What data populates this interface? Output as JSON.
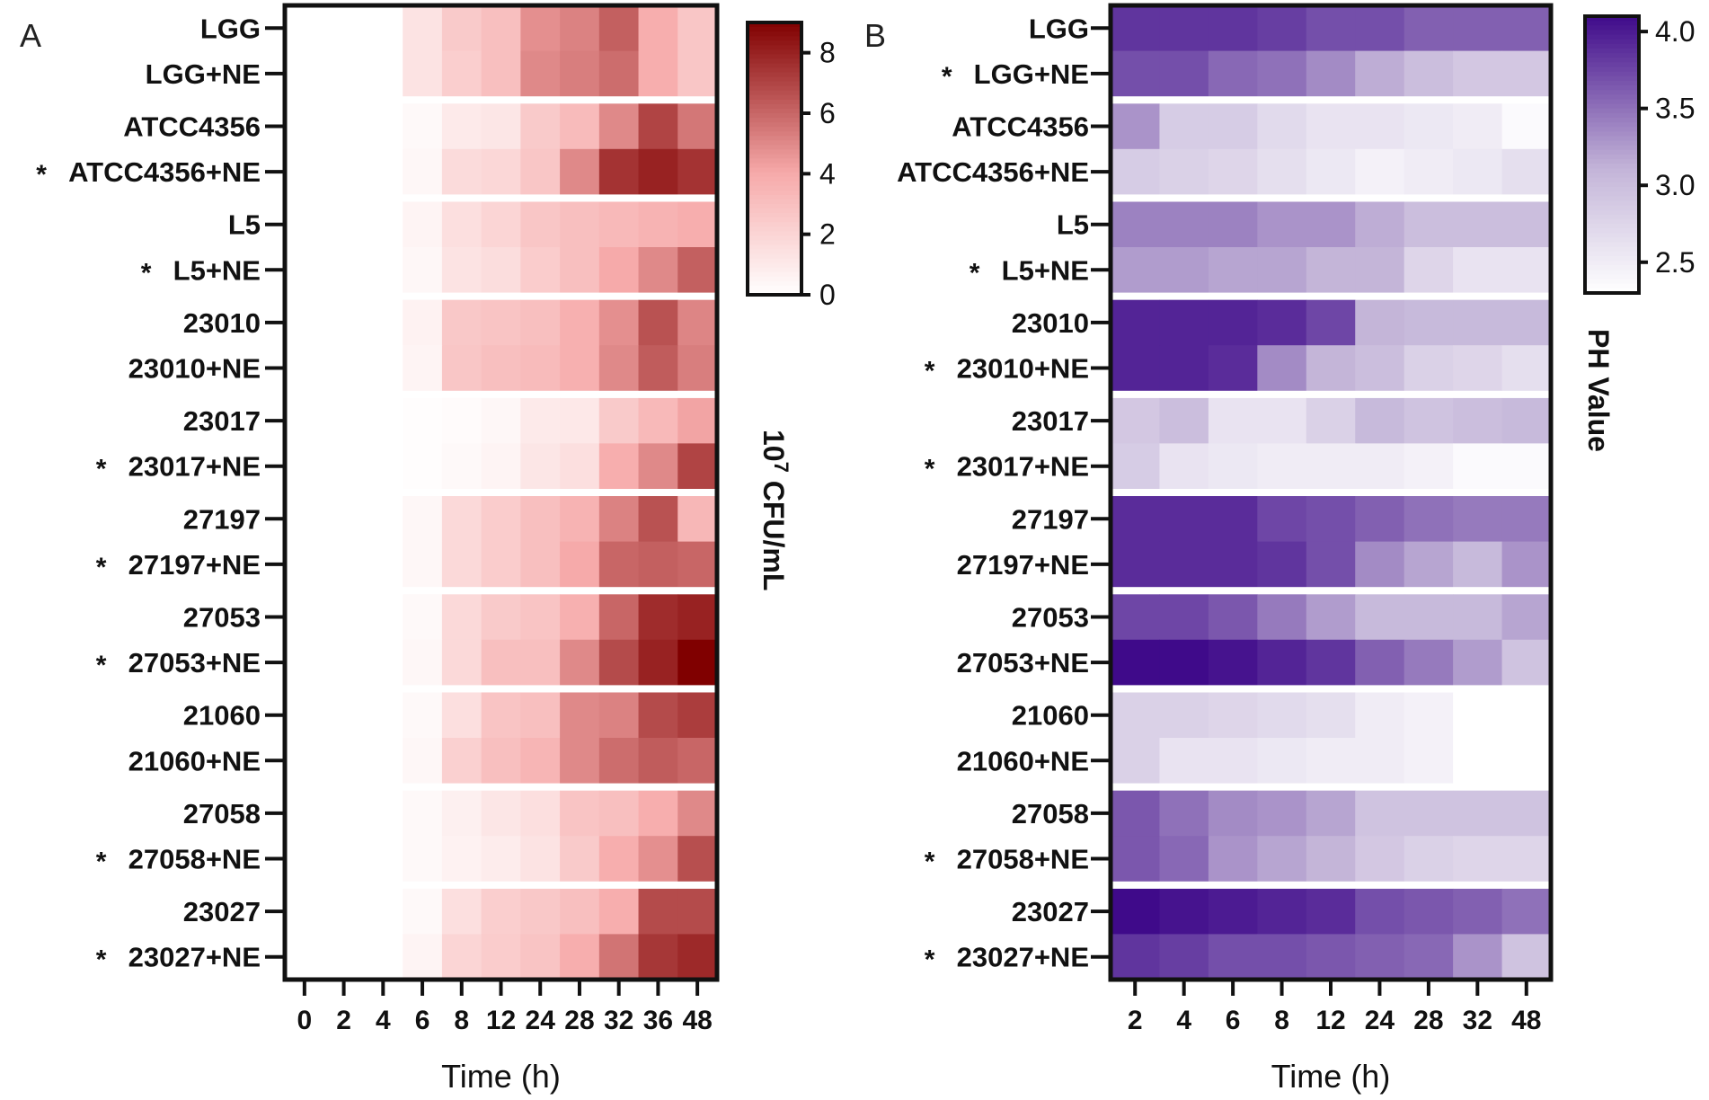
{
  "chart_data": [
    {
      "type": "heatmap",
      "panel_label": "A",
      "title": "",
      "xlabel": "Time (h)",
      "ylabel": "",
      "x": [
        "0",
        "2",
        "4",
        "6",
        "8",
        "12",
        "24",
        "28",
        "32",
        "36",
        "48"
      ],
      "rows": [
        {
          "label": "LGG",
          "star": "",
          "values": [
            0.0,
            0.0,
            0.0,
            1.3,
            2.5,
            3.0,
            4.8,
            5.2,
            6.2,
            3.8,
            2.7
          ]
        },
        {
          "label": "LGG+NE",
          "star": "",
          "values": [
            0.0,
            0.0,
            0.0,
            1.3,
            2.3,
            3.0,
            5.0,
            5.3,
            5.8,
            3.8,
            2.7
          ]
        },
        {
          "label": "ATCC4356",
          "star": "",
          "values": [
            0.0,
            0.0,
            0.0,
            0.3,
            1.0,
            1.2,
            2.5,
            3.2,
            5.0,
            7.0,
            5.5
          ]
        },
        {
          "label": "ATCC4356+NE",
          "star": "*",
          "values": [
            0.0,
            0.0,
            0.0,
            0.4,
            1.7,
            1.9,
            2.7,
            5.0,
            7.5,
            8.0,
            7.5
          ]
        },
        {
          "label": "L5",
          "star": "",
          "values": [
            0.0,
            0.0,
            0.0,
            0.5,
            1.5,
            2.0,
            2.7,
            3.0,
            3.3,
            3.6,
            3.8
          ]
        },
        {
          "label": "L5+NE",
          "star": "*",
          "values": [
            0.0,
            0.0,
            0.0,
            0.4,
            1.3,
            1.6,
            2.4,
            3.0,
            4.0,
            5.0,
            6.2
          ]
        },
        {
          "label": "23010",
          "star": "",
          "values": [
            0.0,
            0.0,
            0.0,
            0.6,
            2.6,
            2.8,
            3.0,
            3.7,
            4.8,
            6.6,
            5.1
          ]
        },
        {
          "label": "23010+NE",
          "star": "",
          "values": [
            0.0,
            0.0,
            0.0,
            0.5,
            2.7,
            3.0,
            3.2,
            3.7,
            5.0,
            6.3,
            5.3
          ]
        },
        {
          "label": "23017",
          "star": "",
          "values": [
            0.0,
            0.0,
            0.0,
            0.1,
            0.2,
            0.4,
            1.0,
            1.1,
            2.5,
            3.3,
            4.2
          ]
        },
        {
          "label": "23017+NE",
          "star": "*",
          "values": [
            0.0,
            0.0,
            0.0,
            0.1,
            0.3,
            0.5,
            1.2,
            1.5,
            3.8,
            5.0,
            7.0
          ]
        },
        {
          "label": "27197",
          "star": "",
          "values": [
            0.0,
            0.0,
            0.0,
            0.4,
            1.8,
            2.4,
            3.0,
            3.6,
            5.2,
            6.6,
            3.4
          ]
        },
        {
          "label": "27197+NE",
          "star": "*",
          "values": [
            0.0,
            0.0,
            0.0,
            0.4,
            1.8,
            2.4,
            3.0,
            4.0,
            6.0,
            6.2,
            6.0
          ]
        },
        {
          "label": "27053",
          "star": "",
          "values": [
            0.0,
            0.0,
            0.0,
            0.3,
            1.8,
            2.5,
            2.8,
            3.7,
            6.0,
            7.7,
            8.0
          ]
        },
        {
          "label": "27053+NE",
          "star": "*",
          "values": [
            0.0,
            0.0,
            0.0,
            0.4,
            1.8,
            3.0,
            3.0,
            5.0,
            6.8,
            8.0,
            9.0
          ]
        },
        {
          "label": "21060",
          "star": "",
          "values": [
            0.0,
            0.0,
            0.0,
            0.3,
            1.5,
            2.8,
            3.0,
            5.0,
            5.2,
            6.8,
            7.2
          ]
        },
        {
          "label": "21060+NE",
          "star": "",
          "values": [
            0.0,
            0.0,
            0.0,
            0.4,
            2.2,
            3.0,
            3.5,
            5.0,
            5.8,
            6.3,
            6.0
          ]
        },
        {
          "label": "27058",
          "star": "",
          "values": [
            0.0,
            0.0,
            0.0,
            0.3,
            0.7,
            1.2,
            1.5,
            2.8,
            3.0,
            3.8,
            5.0
          ]
        },
        {
          "label": "27058+NE",
          "star": "*",
          "values": [
            0.0,
            0.0,
            0.0,
            0.3,
            0.6,
            0.9,
            1.3,
            2.5,
            3.8,
            4.8,
            6.7
          ]
        },
        {
          "label": "23027",
          "star": "",
          "values": [
            0.0,
            0.0,
            0.0,
            0.3,
            1.5,
            2.3,
            2.6,
            3.0,
            3.8,
            6.8,
            6.8
          ]
        },
        {
          "label": "23027+NE",
          "star": "*",
          "values": [
            0.0,
            0.0,
            0.0,
            0.5,
            2.0,
            2.4,
            2.8,
            3.8,
            5.6,
            7.4,
            7.8
          ]
        }
      ],
      "colorbar": {
        "title_base": "10",
        "title_exp": "7",
        "title_unit": " CFU/mL",
        "min": 0,
        "max": 9,
        "ticks": [
          "0",
          "2",
          "4",
          "6",
          "8"
        ],
        "low_color": "#ffffff",
        "mid_color": "#f6a9a9",
        "high_color": "#800000"
      }
    },
    {
      "type": "heatmap",
      "panel_label": "B",
      "title": "",
      "xlabel": "Time (h)",
      "ylabel": "",
      "x": [
        "2",
        "4",
        "6",
        "8",
        "12",
        "24",
        "28",
        "32",
        "48"
      ],
      "rows": [
        {
          "label": "LGG",
          "star": "",
          "values": [
            3.85,
            3.85,
            3.85,
            3.8,
            3.7,
            3.7,
            3.6,
            3.6,
            3.6
          ]
        },
        {
          "label": "LGG+NE",
          "star": "*",
          "values": [
            3.7,
            3.7,
            3.55,
            3.5,
            3.35,
            3.15,
            3.0,
            2.9,
            2.9
          ]
        },
        {
          "label": "ATCC4356",
          "star": "",
          "values": [
            3.3,
            2.85,
            2.85,
            2.7,
            2.6,
            2.6,
            2.55,
            2.5,
            2.35
          ]
        },
        {
          "label": "ATCC4356+NE",
          "star": "",
          "values": [
            2.85,
            2.8,
            2.75,
            2.65,
            2.55,
            2.45,
            2.5,
            2.55,
            2.65
          ]
        },
        {
          "label": "L5",
          "star": "",
          "values": [
            3.4,
            3.4,
            3.4,
            3.3,
            3.3,
            3.15,
            3.0,
            3.0,
            3.0
          ]
        },
        {
          "label": "L5+NE",
          "star": "*",
          "values": [
            3.25,
            3.25,
            3.2,
            3.2,
            3.1,
            3.1,
            2.75,
            2.6,
            2.6
          ]
        },
        {
          "label": "23010",
          "star": "",
          "values": [
            3.95,
            3.95,
            3.95,
            3.9,
            3.75,
            3.1,
            3.05,
            3.05,
            3.05
          ]
        },
        {
          "label": "23010+NE",
          "star": "*",
          "values": [
            3.95,
            3.95,
            3.9,
            3.35,
            3.1,
            3.0,
            2.8,
            2.75,
            2.65
          ]
        },
        {
          "label": "23017",
          "star": "",
          "values": [
            2.9,
            3.0,
            2.6,
            2.6,
            2.8,
            3.05,
            2.95,
            3.0,
            3.05
          ]
        },
        {
          "label": "23017+NE",
          "star": "*",
          "values": [
            2.85,
            2.6,
            2.55,
            2.5,
            2.5,
            2.5,
            2.45,
            2.35,
            2.35
          ]
        },
        {
          "label": "27197",
          "star": "",
          "values": [
            3.9,
            3.9,
            3.9,
            3.75,
            3.7,
            3.6,
            3.5,
            3.45,
            3.45
          ]
        },
        {
          "label": "27197+NE",
          "star": "",
          "values": [
            3.9,
            3.9,
            3.9,
            3.85,
            3.7,
            3.35,
            3.2,
            3.05,
            3.3
          ]
        },
        {
          "label": "27053",
          "star": "",
          "values": [
            3.75,
            3.75,
            3.65,
            3.45,
            3.25,
            3.05,
            3.05,
            3.05,
            3.2
          ]
        },
        {
          "label": "27053+NE",
          "star": "",
          "values": [
            4.1,
            4.1,
            4.05,
            3.95,
            3.85,
            3.6,
            3.45,
            3.25,
            2.95
          ]
        },
        {
          "label": "21060",
          "star": "",
          "values": [
            2.8,
            2.8,
            2.75,
            2.7,
            2.65,
            2.5,
            2.45,
            2.3,
            2.2
          ]
        },
        {
          "label": "21060+NE",
          "star": "",
          "values": [
            2.8,
            2.6,
            2.6,
            2.55,
            2.5,
            2.5,
            2.45,
            2.25,
            2.3
          ]
        },
        {
          "label": "27058",
          "star": "",
          "values": [
            3.65,
            3.5,
            3.35,
            3.3,
            3.2,
            2.95,
            2.95,
            2.95,
            2.95
          ]
        },
        {
          "label": "27058+NE",
          "star": "*",
          "values": [
            3.65,
            3.55,
            3.3,
            3.2,
            3.1,
            2.9,
            2.8,
            2.75,
            2.75
          ]
        },
        {
          "label": "23027",
          "star": "",
          "values": [
            4.15,
            4.05,
            4.0,
            3.95,
            3.9,
            3.7,
            3.65,
            3.6,
            3.5
          ]
        },
        {
          "label": "23027+NE",
          "star": "*",
          "values": [
            3.85,
            3.8,
            3.7,
            3.7,
            3.65,
            3.6,
            3.55,
            3.3,
            2.95
          ]
        }
      ],
      "colorbar": {
        "title": "PH Value",
        "min": 2.3,
        "max": 4.1,
        "ticks": [
          "2.5",
          "3.0",
          "3.5",
          "4.0"
        ],
        "low_color": "#ffffff",
        "mid_color": "#c3b4d8",
        "high_color": "#3f0a8a"
      }
    }
  ]
}
